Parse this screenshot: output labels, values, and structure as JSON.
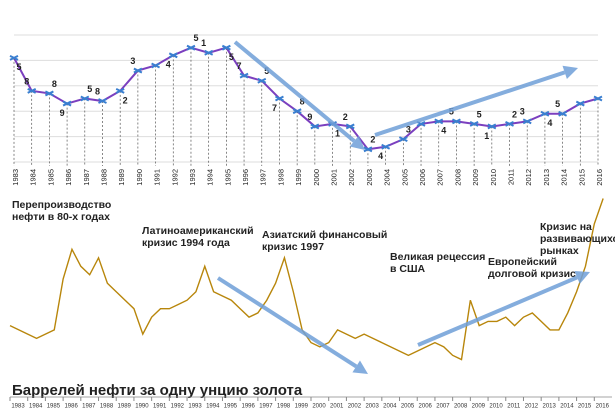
{
  "chart_data": [
    {
      "type": "line",
      "categories": [
        "1983",
        "1984",
        "1985",
        "1986",
        "1987",
        "1988",
        "1989",
        "1990",
        "1991",
        "1992",
        "1993",
        "1994",
        "1995",
        "1996",
        "1997",
        "1998",
        "1999",
        "2000",
        "2001",
        "2002",
        "2003",
        "2004",
        "2005",
        "2006",
        "2007",
        "2008",
        "2009",
        "2010",
        "2011",
        "2012",
        "2013",
        "2014",
        "2015",
        "2016"
      ],
      "values": [
        4.1,
        2.8,
        2.7,
        2.3,
        2.5,
        2.4,
        2.8,
        3.6,
        3.8,
        4.2,
        4.5,
        4.3,
        4.5,
        3.4,
        3.2,
        2.5,
        2.0,
        1.4,
        1.5,
        1.4,
        0.5,
        0.6,
        0.9,
        1.5,
        1.6,
        1.6,
        1.5,
        1.4,
        1.5,
        1.6,
        1.9,
        1.9,
        2.3,
        2.5
      ],
      "point_labels": [
        "5",
        "8",
        "8",
        "9",
        "5",
        "8",
        "2",
        "3",
        null,
        "4",
        "5",
        "1",
        "5",
        "7",
        "5",
        "7",
        "8",
        "9",
        "1",
        "2",
        "2",
        "4",
        "3",
        null,
        "4",
        "5",
        "5",
        "1",
        "2",
        "3",
        "4",
        "5",
        null,
        null
      ],
      "ylim": [
        0,
        5
      ],
      "grid": true,
      "color": "#7b3fbf",
      "marker_color": "#3a7fd0"
    },
    {
      "type": "line",
      "title": "Баррелей нефти за одну унцию золота",
      "x": [
        1983,
        1983.5,
        1984,
        1984.5,
        1985,
        1985.5,
        1986,
        1986.5,
        1987,
        1987.5,
        1988,
        1988.5,
        1989,
        1989.5,
        1990,
        1990.5,
        1991,
        1991.5,
        1992,
        1992.5,
        1993,
        1993.5,
        1994,
        1994.5,
        1995,
        1995.5,
        1996,
        1996.5,
        1997,
        1997.5,
        1998,
        1998.5,
        1999,
        1999.5,
        2000,
        2000.5,
        2001,
        2001.5,
        2002,
        2002.5,
        2003,
        2003.5,
        2004,
        2004.5,
        2005,
        2005.5,
        2006,
        2006.5,
        2007,
        2007.5,
        2008,
        2008.5,
        2009,
        2009.5,
        2010,
        2010.5,
        2011,
        2011.5,
        2012,
        2012.5,
        2013,
        2013.5,
        2014,
        2014.5,
        2015,
        2015.5,
        2016,
        2016.5
      ],
      "values": [
        14,
        13,
        12,
        11,
        12,
        13,
        25,
        32,
        28,
        26,
        30,
        24,
        22,
        20,
        18,
        12,
        16,
        18,
        18,
        19,
        20,
        22,
        28,
        22,
        21,
        20,
        18,
        16,
        17,
        20,
        24,
        30,
        22,
        13,
        10,
        9,
        10,
        13,
        12,
        11,
        12,
        11,
        10,
        9,
        8,
        7,
        8,
        9,
        10,
        9,
        7,
        6,
        20,
        14,
        15,
        15,
        16,
        14,
        16,
        17,
        15,
        13,
        13,
        17,
        22,
        28,
        38,
        44
      ],
      "xlim": [
        1983,
        2017
      ],
      "xticks": [
        1983,
        1984,
        1985,
        1986,
        1987,
        1988,
        1989,
        1990,
        1991,
        1992,
        1993,
        1994,
        1995,
        1996,
        1997,
        1998,
        1999,
        2000,
        2001,
        2002,
        2003,
        2004,
        2005,
        2006,
        2007,
        2008,
        2009,
        2010,
        2011,
        2012,
        2013,
        2014,
        2015,
        2016
      ],
      "ylim": [
        0,
        46
      ],
      "color": "#b8860b",
      "annotations": [
        [
          "Перепроизводство",
          "нефти в 80-х годах"
        ],
        [
          "Латиноамериканский",
          "кризис 1994 года"
        ],
        [
          "Азиатский финансовый",
          "кризис 1997"
        ],
        [
          "Великая рецессия",
          "в США"
        ],
        [
          "Европейский",
          "долговой кризис"
        ],
        [
          "Кризис на",
          "развивающихся",
          "рынках"
        ]
      ]
    }
  ]
}
